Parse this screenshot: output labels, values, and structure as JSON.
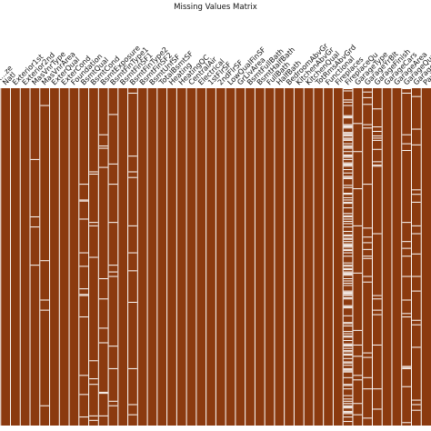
{
  "chart_data": {
    "type": "heatmap",
    "title": "Missing Values Matrix",
    "present_color": "#8B3A0F",
    "missing_color": "#FFFFFF",
    "columns": [
      "Ex...ze",
      "Natl",
      "Exterior1st",
      "Exterior2nd",
      "MasVnrType",
      "MasVnrArea",
      "ExterQual",
      "ExterCond",
      "Foundation",
      "BsmtQual",
      "BsmtCond",
      "BsmtExposure",
      "BsmtFinType1",
      "BsmtFinSF1",
      "BsmtFinType2",
      "BsmtFinSF2",
      "BsmtUnfSF",
      "TotalBsmtSF",
      "Heating",
      "HeatingQC",
      "CentralAir",
      "Electrical",
      "1stFlrSF",
      "2ndFlrSF",
      "LowQualFinSF",
      "GrLivArea",
      "BsmtFullBath",
      "BsmtHalfBath",
      "FullBath",
      "HalfBath",
      "BedroomAbvGr",
      "KitchenAbvGr",
      "KitchenQual",
      "TotRmsAbvGrd",
      "Functional",
      "Fireplaces",
      "FireplaceQu",
      "GarageType",
      "GarageYrBlt",
      "GarageFinish",
      "GarageCars",
      "GarageArea",
      "GarageQual",
      "GarageCond",
      "PavedDrive"
    ],
    "missing_fraction": [
      0.0,
      0.0,
      0.0,
      0.0,
      0.01,
      0.01,
      0.0,
      0.0,
      0.0,
      0.03,
      0.03,
      0.03,
      0.03,
      0.0,
      0.03,
      0.0,
      0.0,
      0.0,
      0.0,
      0.0,
      0.0,
      0.0,
      0.0,
      0.0,
      0.0,
      0.0,
      0.0,
      0.0,
      0.0,
      0.0,
      0.0,
      0.0,
      0.0,
      0.0,
      0.0,
      0.0,
      0.47,
      0.06,
      0.06,
      0.06,
      0.0,
      0.0,
      0.06,
      0.06,
      0.0
    ]
  }
}
